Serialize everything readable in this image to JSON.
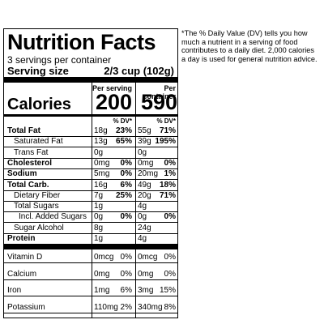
{
  "label": {
    "title": "Nutrition Facts",
    "servings": "3 servings per container",
    "serving_size_label": "Serving size",
    "serving_size_value": "2/3 cup (102g)",
    "per_serving_label": "Per serving",
    "per_container_label": "Per container",
    "calories_label": "Calories",
    "calories_serving": "200",
    "calories_container": "590",
    "dv_header": "% DV*",
    "nutrients": [
      {
        "name": "Total Fat",
        "s_amt": "18g",
        "s_dv": "23%",
        "c_amt": "55g",
        "c_dv": "71%"
      },
      {
        "name": "Saturated Fat",
        "s_amt": "13g",
        "s_dv": "65%",
        "c_amt": "39g",
        "c_dv": "195%"
      },
      {
        "name": "Trans Fat",
        "s_amt": "0g",
        "s_dv": "",
        "c_amt": "0g",
        "c_dv": ""
      },
      {
        "name": "Cholesterol",
        "s_amt": "0mg",
        "s_dv": "0%",
        "c_amt": "0mg",
        "c_dv": "0%"
      },
      {
        "name": "Sodium",
        "s_amt": "5mg",
        "s_dv": "0%",
        "c_amt": "20mg",
        "c_dv": "1%"
      },
      {
        "name": "Total Carb.",
        "s_amt": "16g",
        "s_dv": "6%",
        "c_amt": "49g",
        "c_dv": "18%"
      },
      {
        "name": "Dietary Fiber",
        "s_amt": "7g",
        "s_dv": "25%",
        "c_amt": "20g",
        "c_dv": "71%"
      },
      {
        "name": "Total Sugars",
        "s_amt": "1g",
        "s_dv": "",
        "c_amt": "4g",
        "c_dv": ""
      },
      {
        "name": "Incl. Added Sugars",
        "s_amt": "0g",
        "s_dv": "0%",
        "c_amt": "0g",
        "c_dv": "0%"
      },
      {
        "name": "Sugar Alcohol",
        "s_amt": "8g",
        "s_dv": "",
        "c_amt": "24g",
        "c_dv": ""
      },
      {
        "name": "Protein",
        "s_amt": "1g",
        "s_dv": "",
        "c_amt": "4g",
        "c_dv": ""
      }
    ],
    "micronutrients": [
      {
        "name": "Vitamin D",
        "s_amt": "0mcg",
        "s_dv": "0%",
        "c_amt": "0mcg",
        "c_dv": "0%"
      },
      {
        "name": "Calcium",
        "s_amt": "0mg",
        "s_dv": "0%",
        "c_amt": "0mg",
        "c_dv": "0%"
      },
      {
        "name": "Iron",
        "s_amt": "1mg",
        "s_dv": "6%",
        "c_amt": "3mg",
        "c_dv": "15%"
      },
      {
        "name": "Potassium",
        "s_amt": "110mg",
        "s_dv": "2%",
        "c_amt": "340mg",
        "c_dv": "8%"
      }
    ]
  },
  "footnote": "*The % Daily Value (DV) tells you how much a nutrient in a serving of food contributes to a daily diet. 2,000 calories a day is used for general nutrition advice."
}
